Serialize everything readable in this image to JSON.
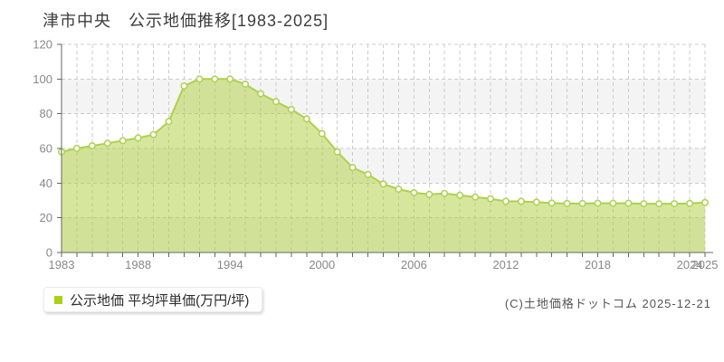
{
  "page": {
    "title": "津市中央　公示地価推移[1983-2025]",
    "copyright": "(C)土地価格ドットコム 2025-12-21"
  },
  "legend": {
    "label": "公示地価 平均坪単価(万円/坪)",
    "marker_color": "#a9d214"
  },
  "colors": {
    "line": "#aed04b",
    "area_fill": "rgba(173,208,60,0.5)",
    "marker_fill": "#ffffff",
    "marker_stroke": "#b2d258",
    "grid": "#cccccc",
    "band": "#f4f4f4",
    "axis": "#666666",
    "tick": "#777777",
    "tick_text": "#888888"
  },
  "chart_data": {
    "type": "area",
    "title": "津市中央 公示地価推移[1983-2025]",
    "series_name": "公示地価 平均坪単価(万円/坪)",
    "x": [
      1983,
      1984,
      1985,
      1986,
      1987,
      1988,
      1989,
      1990,
      1991,
      1992,
      1993,
      1994,
      1995,
      1996,
      1997,
      1998,
      1999,
      2000,
      2001,
      2002,
      2003,
      2004,
      2005,
      2006,
      2007,
      2008,
      2009,
      2010,
      2011,
      2012,
      2013,
      2014,
      2015,
      2016,
      2017,
      2018,
      2019,
      2020,
      2021,
      2022,
      2023,
      2024,
      2025
    ],
    "values": [
      58,
      60,
      61.5,
      63,
      64.5,
      66,
      68,
      75.5,
      96,
      100,
      100,
      100,
      97,
      91.5,
      87,
      82.5,
      77,
      68.5,
      58,
      49,
      45,
      39.5,
      36.5,
      34.5,
      33.5,
      34,
      33,
      32,
      31,
      29.5,
      29.5,
      29,
      28.5,
      28.2,
      28.2,
      28.4,
      28.4,
      28.4,
      28.1,
      28.1,
      28.1,
      28.3,
      28.8
    ],
    "ylim": [
      0,
      120
    ],
    "ytick_step": 20,
    "xticks_labeled": [
      1983,
      1988,
      1994,
      2000,
      2006,
      2012,
      2018,
      2024,
      2025
    ],
    "grid": true,
    "alternating_bands": true,
    "legend_position": "bottom-left",
    "unit": "万円/坪"
  }
}
